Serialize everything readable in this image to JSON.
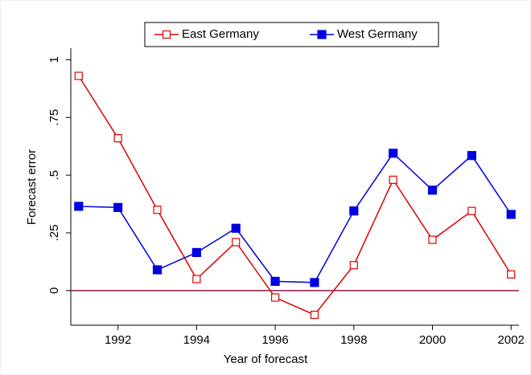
{
  "chart_data": {
    "type": "line",
    "x_label": "Year of forecast",
    "y_label": "Forecast error",
    "x": [
      1991,
      1992,
      1993,
      1994,
      1995,
      1996,
      1997,
      1998,
      1999,
      2000,
      2001,
      2002
    ],
    "series": [
      {
        "name": "East Germany",
        "color": "#e00000",
        "marker": "hollow-square",
        "values": [
          0.93,
          0.66,
          0.35,
          0.05,
          0.21,
          -0.03,
          -0.105,
          0.11,
          0.48,
          0.22,
          0.345,
          0.07
        ]
      },
      {
        "name": "West Germany",
        "color": "#0000e0",
        "marker": "filled-square",
        "values": [
          0.365,
          0.36,
          0.09,
          0.165,
          0.27,
          0.04,
          0.035,
          0.345,
          0.595,
          0.435,
          0.585,
          0.33
        ]
      }
    ],
    "xlim": [
      1990.8,
      2002.2
    ],
    "xticks": [
      1992,
      1994,
      1996,
      1998,
      2000,
      2002
    ],
    "ylim": [
      -0.15,
      1.05
    ],
    "yticks": [
      0,
      {
        "value": 0.25,
        "label": ".25"
      },
      {
        "value": 0.5,
        "label": ".5"
      },
      {
        "value": 0.75,
        "label": ".75"
      },
      1
    ],
    "reference_line": {
      "value": 0,
      "color": "#8b1a4a"
    },
    "legend": "top"
  }
}
